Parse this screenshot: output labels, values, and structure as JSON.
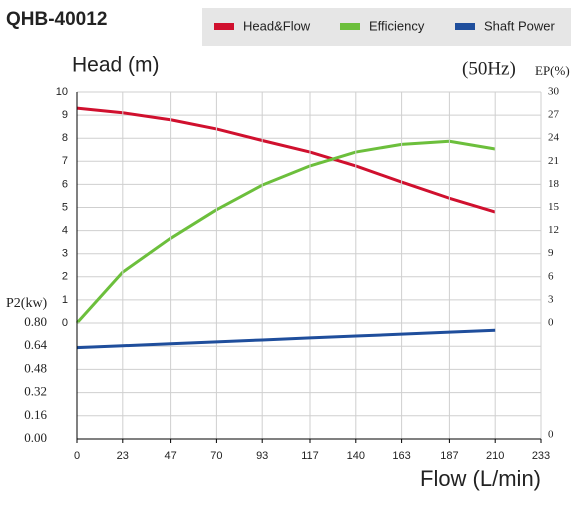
{
  "chart_data": [
    {
      "type": "line",
      "title": "QHB-40012",
      "ylabel": "Head (m)",
      "y2label": "EP(%)",
      "annotation": "(50Hz)",
      "x": [
        0,
        23,
        47,
        70,
        93,
        117,
        140,
        163,
        187,
        210
      ],
      "series": [
        {
          "name": "Head&Flow",
          "color": "#d0102e",
          "values": [
            9.3,
            9.1,
            8.8,
            8.4,
            7.9,
            7.4,
            6.8,
            6.1,
            5.4,
            4.8
          ]
        },
        {
          "name": "Efficiency",
          "color": "#6cbf3c",
          "axis": "y2",
          "values": [
            0,
            6.6,
            11,
            14.7,
            17.9,
            20.4,
            22.2,
            23.2,
            23.6,
            22.6
          ]
        }
      ],
      "xlim": [
        0,
        233
      ],
      "ylim": [
        0,
        10
      ],
      "yticks": [
        0,
        1,
        2,
        3,
        4,
        5,
        6,
        7,
        8,
        9,
        10
      ],
      "y2lim": [
        0,
        30
      ],
      "y2ticks": [
        0,
        3,
        6,
        9,
        12,
        15,
        18,
        21,
        24,
        27,
        30
      ],
      "grid": true
    },
    {
      "type": "line",
      "ylabel": "P2(kw)",
      "xlabel": "Flow (L/min)",
      "annotation": "0",
      "x": [
        0,
        23,
        47,
        70,
        93,
        117,
        140,
        163,
        187,
        210
      ],
      "series": [
        {
          "name": "Shaft Power",
          "color": "#1f4e9c",
          "values": [
            0.63,
            0.643,
            0.657,
            0.67,
            0.683,
            0.697,
            0.71,
            0.723,
            0.737,
            0.75
          ]
        }
      ],
      "xlim": [
        0,
        233
      ],
      "xticks": [
        0,
        23,
        47,
        70,
        93,
        117,
        140,
        163,
        187,
        210,
        233
      ],
      "ylim": [
        0,
        0.8
      ],
      "yticks": [
        {
          "value": 0,
          "label": "0.00"
        },
        0.16,
        0.32,
        0.48,
        0.64,
        {
          "value": 0.8,
          "label": "0.80"
        }
      ],
      "grid": true
    }
  ]
}
